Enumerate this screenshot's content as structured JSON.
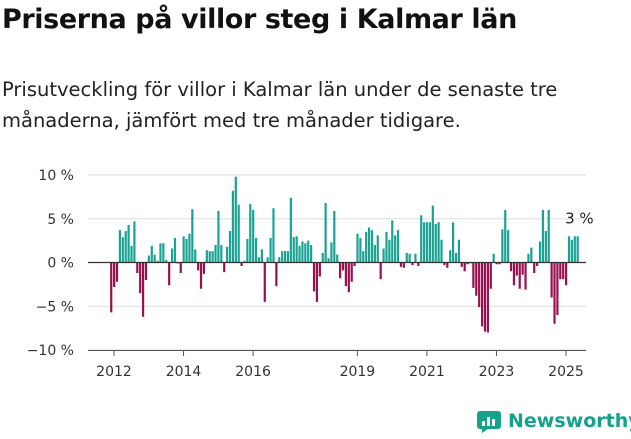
{
  "header": {
    "title": "Priserna på villor steg i Kalmar län",
    "subtitle": "Prisutveckling för villor i Kalmar län under de senaste tre månaderna, jämfört med tre månader tidigare."
  },
  "brand": {
    "name": "Newsworthy",
    "icon": "newsworthy-logo-icon"
  },
  "colors": {
    "positive": "#1aa393",
    "negative": "#9a0f4e",
    "axis": "#333333",
    "grid": "#dddddd"
  },
  "chart_data": {
    "type": "bar",
    "title": "",
    "xlabel": "",
    "ylabel": "",
    "ylim": [
      -10,
      10
    ],
    "yticks": [
      10,
      5,
      0,
      -5,
      -10
    ],
    "ytick_labels": [
      "10 %",
      "5 %",
      "0 %",
      "−5 %",
      "−10 %"
    ],
    "xticks": [
      2012,
      2014,
      2016,
      2019,
      2021,
      2023,
      2025
    ],
    "xtick_labels": [
      "2012",
      "2014",
      "2016",
      "2019",
      "2021",
      "2023",
      "2025"
    ],
    "x_start": 2011.92,
    "x_step": 0.08333,
    "last_value_label": "3 %",
    "values": [
      -5.7,
      -2.8,
      -2.2,
      3.7,
      2.9,
      3.6,
      4.3,
      1.9,
      4.7,
      -1.2,
      -3.5,
      -6.2,
      -2,
      0.8,
      1.9,
      0.9,
      0.2,
      2.2,
      2.2,
      0.3,
      -2.6,
      1.6,
      2.8,
      -0.1,
      -1.2,
      3,
      2.7,
      3.3,
      6.1,
      1.5,
      -0.9,
      -3,
      -1.3,
      1.4,
      1.3,
      1.3,
      2,
      5.9,
      2,
      -1.1,
      1.8,
      3.6,
      8.2,
      9.8,
      6.6,
      -0.4,
      0.2,
      2.7,
      6.7,
      6,
      2.8,
      0.6,
      1.5,
      -4.5,
      0.6,
      2.8,
      6.2,
      -2.7,
      0.6,
      1.3,
      1.3,
      1.3,
      7.4,
      2.9,
      3,
      1.9,
      2.4,
      2.2,
      2.5,
      2,
      -3.3,
      -4.5,
      -1.6,
      1.1,
      6.8,
      0.5,
      2.3,
      5.9,
      0.9,
      -1.8,
      -0.9,
      -2.7,
      -3.4,
      -2.2,
      -0.4,
      3.3,
      2.8,
      1.3,
      3.5,
      4,
      3.7,
      2,
      3.1,
      -1.9,
      1.6,
      3.5,
      2.6,
      4.8,
      3.1,
      3.7,
      -0.5,
      -0.6,
      1.1,
      1,
      -0.3,
      1,
      -0.4,
      5.4,
      4.6,
      4.6,
      4.6,
      6.5,
      4.4,
      4.6,
      2.6,
      -0.3,
      -0.6,
      1.4,
      4.6,
      1.1,
      2.6,
      -0.5,
      -1,
      -0.2,
      -0.1,
      -2.9,
      -3.8,
      -5.1,
      -7.3,
      -7.9,
      -8,
      -3,
      1,
      -0.2,
      -0.2,
      3.8,
      6,
      3.7,
      -1,
      -2.6,
      -1.5,
      -3,
      -1.4,
      -3.1,
      1,
      1.7,
      -1.2,
      -0.4,
      2.4,
      6,
      3.6,
      6,
      -4,
      -7,
      -6,
      -1.9,
      -1.9,
      -2.6,
      3,
      2.6,
      3,
      3
    ]
  }
}
